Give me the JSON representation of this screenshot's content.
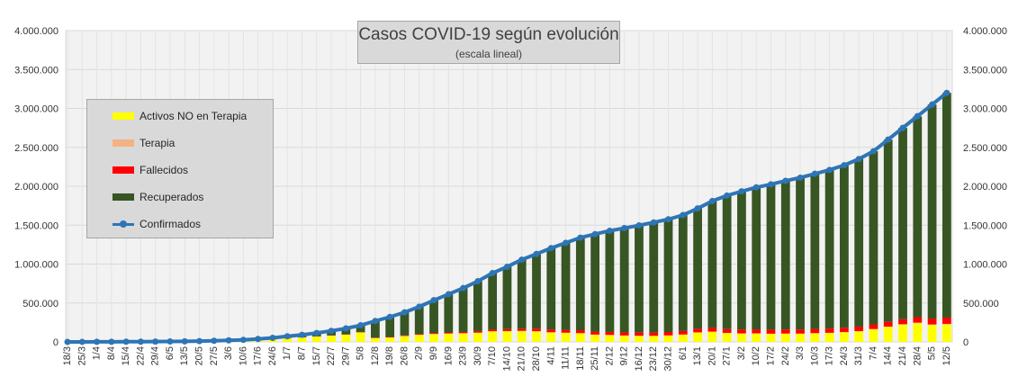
{
  "chart_data": {
    "type": "area",
    "title": "Casos COVID-19 según evolución",
    "subtitle": "(escala lineal)",
    "ylim": [
      0,
      4000000
    ],
    "yticks": [
      "0",
      "500.000",
      "1.000.000",
      "1.500.000",
      "2.000.000",
      "2.500.000",
      "3.000.000",
      "3.500.000",
      "4.000.000"
    ],
    "categories": [
      "18/3",
      "25/3",
      "1/4",
      "8/4",
      "15/4",
      "22/4",
      "29/4",
      "6/5",
      "13/5",
      "20/5",
      "27/5",
      "3/6",
      "10/6",
      "17/6",
      "24/6",
      "1/7",
      "8/7",
      "15/7",
      "22/7",
      "29/7",
      "5/8",
      "12/8",
      "19/8",
      "26/8",
      "2/9",
      "9/9",
      "16/9",
      "23/9",
      "30/9",
      "7/10",
      "14/10",
      "21/10",
      "28/10",
      "4/11",
      "11/11",
      "18/11",
      "25/11",
      "2/12",
      "9/12",
      "16/12",
      "23/12",
      "30/12",
      "6/1",
      "13/1",
      "20/1",
      "27/1",
      "3/2",
      "10/2",
      "17/2",
      "24/2",
      "3/3",
      "10/3",
      "17/3",
      "24/3",
      "31/3",
      "7/4",
      "14/4",
      "21/4",
      "28/4",
      "5/5",
      "12/5"
    ],
    "series": [
      {
        "name": "Confirmados",
        "type": "line",
        "color": "#2e75b6",
        "values": [
          100,
          600,
          1200,
          1800,
          2600,
          3300,
          4500,
          5500,
          7100,
          9900,
          14700,
          20200,
          26600,
          37500,
          52400,
          72800,
          91000,
          114800,
          141900,
          173300,
          213500,
          268600,
          320900,
          380300,
          452300,
          535700,
          613400,
          691600,
          779700,
          883900,
          965600,
          1057000,
          1130000,
          1205000,
          1273000,
          1340000,
          1385000,
          1428000,
          1462000,
          1497000,
          1535000,
          1575000,
          1630000,
          1715000,
          1810000,
          1880000,
          1935000,
          1985000,
          2025000,
          2070000,
          2110000,
          2160000,
          2210000,
          2270000,
          2350000,
          2450000,
          2600000,
          2750000,
          2900000,
          3050000,
          3200000
        ]
      },
      {
        "name": "Recuperados",
        "type": "area",
        "color": "#375623",
        "values": [
          0,
          50,
          200,
          400,
          700,
          1000,
          1400,
          1900,
          2600,
          3300,
          4500,
          6200,
          8200,
          11000,
          15800,
          22700,
          31700,
          43400,
          58400,
          76000,
          86000,
          213500,
          256300,
          295100,
          349900,
          421800,
          491800,
          564000,
          640000,
          722700,
          800000,
          887100,
          960000,
          1045000,
          1118000,
          1190000,
          1253000,
          1300000,
          1342000,
          1385000,
          1415000,
          1448000,
          1490000,
          1545000,
          1630000,
          1715000,
          1775000,
          1825000,
          1868000,
          1910000,
          1950000,
          1993000,
          2038000,
          2087000,
          2158000,
          2225000,
          2341000,
          2458000,
          2580000,
          2750000,
          2887000
        ]
      },
      {
        "name": "Fallecidos",
        "type": "area",
        "color": "#ff0000",
        "values": [
          0,
          10,
          20,
          50,
          100,
          150,
          200,
          250,
          300,
          350,
          400,
          550,
          750,
          1000,
          1150,
          1400,
          1750,
          2200,
          2700,
          3300,
          4100,
          5300,
          6700,
          8200,
          9800,
          11100,
          12500,
          15000,
          20100,
          23500,
          25800,
          28000,
          32000,
          35800,
          36500,
          37100,
          37700,
          38200,
          39500,
          40200,
          41500,
          43000,
          44800,
          46200,
          47600,
          48900,
          49800,
          50600,
          51300,
          52000,
          52900,
          54000,
          55000,
          56100,
          57400,
          58700,
          61500,
          64800,
          69700,
          75100,
          80600
        ]
      },
      {
        "name": "Terapia",
        "type": "area",
        "color": "#f4b183",
        "values": [
          10,
          50,
          100,
          150,
          200,
          250,
          300,
          350,
          400,
          450,
          500,
          600,
          700,
          800,
          900,
          1000,
          1200,
          1500,
          1900,
          2400,
          2900,
          3500,
          4100,
          4700,
          5200,
          5500,
          5700,
          5900,
          6000,
          5000,
          4900,
          4800,
          4700,
          4700,
          4600,
          4400,
          4000,
          3700,
          3600,
          3500,
          3500,
          3500,
          3600,
          3700,
          3800,
          3700,
          3600,
          3600,
          3600,
          3600,
          3600,
          3700,
          3800,
          4000,
          4500,
          5000,
          5600,
          6000,
          6800,
          7000,
          7500
        ]
      },
      {
        "name": "Activos NO en Terapia",
        "type": "area",
        "color": "#ffff00",
        "values": [
          90,
          490,
          880,
          1200,
          1600,
          1900,
          2600,
          3000,
          3800,
          5800,
          9300,
          12850,
          16950,
          24700,
          34550,
          48400,
          56350,
          67700,
          78900,
          91600,
          120500,
          46300,
          53800,
          72300,
          87400,
          97300,
          103400,
          106700,
          113600,
          132700,
          134900,
          137100,
          133300,
          119700,
          113900,
          108500,
          90300,
          86100,
          78900,
          75800,
          75000,
          80500,
          91600,
          119100,
          128800,
          112400,
          106600,
          106800,
          102100,
          104400,
          103500,
          109300,
          113200,
          122900,
          134100,
          161300,
          191300,
          221200,
          241500,
          217900,
          224400
        ]
      }
    ],
    "legend": [
      "Activos NO en Terapia",
      "Terapia",
      "Fallecidos",
      "Recuperados",
      "Confirmados"
    ],
    "legend_placement": "left",
    "grid": true
  }
}
